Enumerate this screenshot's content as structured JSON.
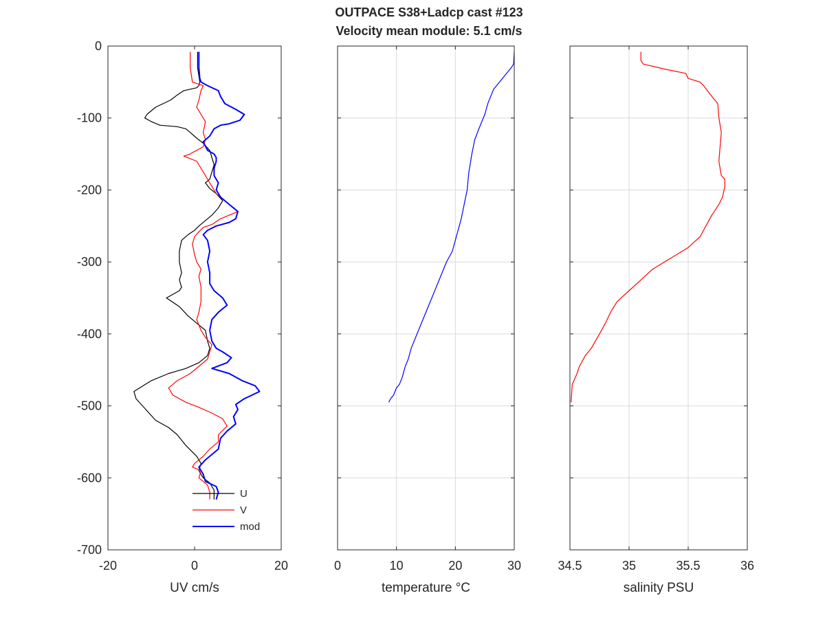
{
  "title_line1": "OUTPACE S38+Ladcp cast #123",
  "title_line2": "Velocity mean module:  5.1 cm/s",
  "chart_data": [
    {
      "type": "line",
      "xlabel": "UV cm/s",
      "ylabel": "",
      "xlim": [
        -20,
        20
      ],
      "ylim": [
        -700,
        0
      ],
      "xticks": [
        -20,
        0,
        20
      ],
      "yticks": [
        0,
        -100,
        -200,
        -300,
        -400,
        -500,
        -600,
        -700
      ],
      "grid": false,
      "legend": "bottom-right inside",
      "series": [
        {
          "name": "U",
          "color": "#000000",
          "x": [
            0.7,
            0.7,
            1.2,
            1.0,
            0.5,
            -2.5,
            -4.0,
            -5.5,
            -9.0,
            -11.0,
            -11.5,
            -10.0,
            -8.0,
            -4.0,
            -2.0,
            -1.0,
            0.5,
            2.0,
            3.5,
            4.0,
            4.5,
            4.0,
            3.5,
            2.5,
            3.5,
            5.0,
            6.5,
            5.5,
            4.0,
            2.0,
            1.0,
            0.0,
            -1.5,
            -3.0,
            -3.5,
            -3.5,
            -3.0,
            -3.5,
            -3.0,
            -3.5,
            -6.5,
            -3.5,
            -1.5,
            0.5,
            2.5,
            3.0,
            3.5,
            3.0,
            1.0,
            -2.0,
            -6.0,
            -10.0,
            -14.0,
            -13.5,
            -12.0,
            -10.5,
            -9.0,
            -6.0,
            -4.0,
            -2.0,
            0.5,
            1.5,
            1.0,
            2.0,
            3.5,
            4.0,
            4.5,
            4.5
          ],
          "y": [
            -8,
            -30,
            -50,
            -55,
            -58,
            -62,
            -68,
            -75,
            -85,
            -95,
            -100,
            -105,
            -110,
            -112,
            -115,
            -120,
            -128,
            -135,
            -145,
            -155,
            -165,
            -175,
            -185,
            -190,
            -198,
            -205,
            -215,
            -225,
            -235,
            -245,
            -250,
            -256,
            -262,
            -270,
            -285,
            -300,
            -315,
            -325,
            -335,
            -340,
            -350,
            -362,
            -375,
            -385,
            -395,
            -410,
            -420,
            -430,
            -440,
            -448,
            -455,
            -465,
            -480,
            -490,
            -500,
            -510,
            -520,
            -530,
            -540,
            -555,
            -570,
            -580,
            -590,
            -600,
            -607,
            -612,
            -617,
            -630
          ]
        },
        {
          "name": "V",
          "color": "#ff0000",
          "x": [
            -1.0,
            -1.0,
            -0.5,
            2.0,
            1.5,
            1.0,
            0.5,
            1.5,
            2.5,
            2.0,
            2.5,
            2.0,
            0.5,
            -0.5,
            -1.0,
            -2.5,
            0.5,
            1.5,
            2.5,
            4.0,
            5.0,
            8.0,
            10.0,
            6.0,
            4.0,
            2.0,
            1.0,
            0.0,
            -0.5,
            0.0,
            0.5,
            1.5,
            1.0,
            1.5,
            1.5,
            1.0,
            0.5,
            1.5,
            2.5,
            4.0,
            3.0,
            -1.0,
            -4.0,
            -6.0,
            -5.0,
            -2.0,
            1.0,
            4.0,
            6.5,
            7.5,
            5.5,
            5.5,
            3.5,
            2.0,
            0.0,
            -0.5,
            1.5,
            1.0,
            3.0,
            3.5,
            3.5
          ],
          "y": [
            -8,
            -30,
            -50,
            -55,
            -62,
            -75,
            -85,
            -95,
            -105,
            -120,
            -130,
            -140,
            -145,
            -148,
            -150,
            -153,
            -160,
            -170,
            -180,
            -195,
            -205,
            -220,
            -230,
            -240,
            -248,
            -252,
            -258,
            -265,
            -275,
            -290,
            -300,
            -310,
            -320,
            -335,
            -355,
            -370,
            -380,
            -395,
            -405,
            -415,
            -435,
            -455,
            -465,
            -475,
            -485,
            -495,
            -502,
            -510,
            -518,
            -528,
            -540,
            -550,
            -560,
            -570,
            -580,
            -585,
            -590,
            -600,
            -610,
            -620,
            -630
          ]
        },
        {
          "name": "mod",
          "color": "#0000ff",
          "x": [
            1.0,
            1.0,
            1.2,
            1.5,
            3.0,
            5.5,
            6.0,
            7.0,
            9.5,
            11.5,
            10.5,
            8.0,
            6.0,
            4.5,
            3.5,
            2.0,
            3.0,
            4.5,
            5.0,
            5.0,
            4.5,
            4.5,
            5.5,
            5.0,
            6.0,
            8.0,
            10.0,
            9.5,
            8.0,
            5.0,
            3.0,
            2.0,
            3.0,
            3.5,
            3.0,
            3.5,
            3.5,
            4.5,
            6.5,
            7.5,
            5.5,
            4.0,
            3.5,
            4.0,
            5.0,
            6.5,
            8.5,
            7.5,
            4.0,
            8.0,
            11.0,
            14.0,
            15.0,
            11.5,
            9.5,
            10.0,
            9.0,
            9.5,
            7.5,
            6.0,
            5.5,
            2.5,
            1.0,
            2.0,
            2.5,
            5.0,
            5.5,
            5.0
          ],
          "y": [
            -8,
            -30,
            -45,
            -50,
            -55,
            -62,
            -70,
            -80,
            -88,
            -95,
            -103,
            -108,
            -110,
            -115,
            -125,
            -133,
            -145,
            -150,
            -155,
            -160,
            -170,
            -180,
            -190,
            -200,
            -210,
            -220,
            -230,
            -240,
            -245,
            -250,
            -256,
            -262,
            -270,
            -285,
            -300,
            -315,
            -330,
            -340,
            -350,
            -360,
            -370,
            -380,
            -395,
            -410,
            -420,
            -425,
            -433,
            -440,
            -448,
            -455,
            -465,
            -472,
            -480,
            -490,
            -498,
            -505,
            -515,
            -525,
            -535,
            -545,
            -560,
            -575,
            -585,
            -595,
            -605,
            -612,
            -620,
            -630
          ]
        }
      ]
    },
    {
      "type": "line",
      "xlabel": "temperature °C",
      "xlim": [
        0,
        30
      ],
      "ylim": [
        -700,
        0
      ],
      "xticks": [
        0,
        10,
        20,
        30
      ],
      "grid": true,
      "series": [
        {
          "color": "#0000ff",
          "x": [
            30.0,
            29.9,
            29.5,
            28.5,
            27.5,
            26.5,
            26.0,
            25.5,
            25.0,
            24.5,
            24.0,
            23.3,
            22.8,
            22.5,
            22.3,
            22.0,
            21.5,
            21.0,
            20.0,
            19.5,
            18.5,
            17.0,
            16.0,
            15.0,
            13.5,
            12.5,
            12.0,
            11.5,
            11.0,
            10.5,
            10.0,
            9.5,
            9.0,
            8.7
          ],
          "y": [
            -8,
            -25,
            -30,
            -40,
            -50,
            -60,
            -70,
            -80,
            -95,
            -105,
            -115,
            -130,
            -150,
            -165,
            -175,
            -200,
            -220,
            -240,
            -270,
            -285,
            -300,
            -330,
            -350,
            -370,
            -400,
            -420,
            -435,
            -445,
            -460,
            -470,
            -475,
            -485,
            -490,
            -495
          ]
        }
      ]
    },
    {
      "type": "line",
      "xlabel": "salinity PSU",
      "xlim": [
        34.5,
        36
      ],
      "ylim": [
        -700,
        0
      ],
      "xticks": [
        34.5,
        35,
        35.5,
        36
      ],
      "grid": true,
      "series": [
        {
          "color": "#ff0000",
          "x": [
            35.1,
            35.1,
            35.12,
            35.3,
            35.48,
            35.5,
            35.6,
            35.63,
            35.7,
            35.75,
            35.76,
            35.78,
            35.77,
            35.76,
            35.77,
            35.78,
            35.81,
            35.81,
            35.79,
            35.76,
            35.7,
            35.65,
            35.6,
            35.5,
            35.4,
            35.35,
            35.2,
            35.1,
            35.0,
            34.9,
            34.85,
            34.8,
            34.75,
            34.68,
            34.63,
            34.58,
            34.56,
            34.52,
            34.51
          ],
          "y": [
            -8,
            -20,
            -25,
            -32,
            -38,
            -45,
            -50,
            -55,
            -70,
            -80,
            -100,
            -120,
            -140,
            -160,
            -170,
            -180,
            -185,
            -195,
            -210,
            -220,
            -235,
            -250,
            -265,
            -280,
            -290,
            -295,
            -310,
            -325,
            -340,
            -355,
            -368,
            -385,
            -400,
            -420,
            -430,
            -445,
            -455,
            -470,
            -495
          ]
        }
      ]
    }
  ]
}
